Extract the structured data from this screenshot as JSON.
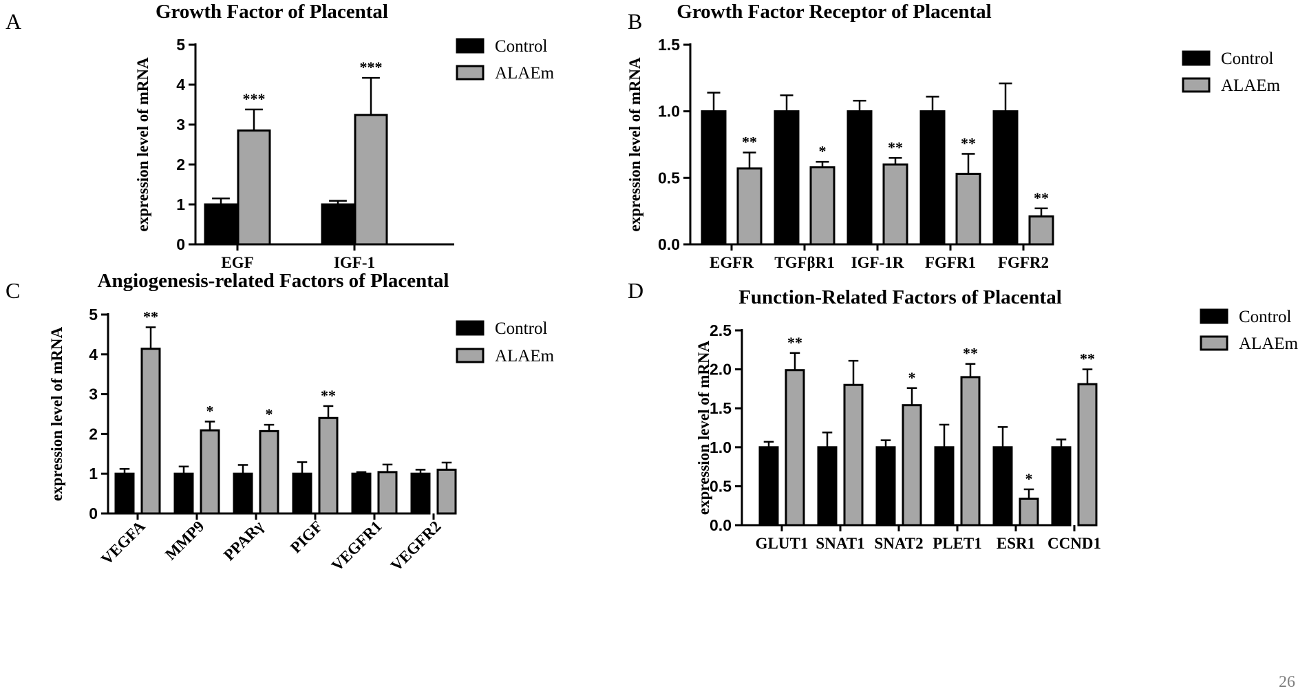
{
  "page_number": "26",
  "colors": {
    "control": "#000000",
    "alaem": "#a6a6a6",
    "page_number": "#808080"
  },
  "chart_data": [
    {
      "panel": "A",
      "type": "bar",
      "title": "Growth Factor of Placental",
      "xlabel": "",
      "ylabel": "expression level of mRNA",
      "ylim": [
        0,
        5
      ],
      "yticks": [
        "0",
        "1",
        "2",
        "3",
        "4",
        "5"
      ],
      "categories": [
        "EGF",
        "IGF-1"
      ],
      "series": [
        {
          "name": "Control",
          "values": [
            1.0,
            1.0
          ],
          "errors": [
            0.15,
            0.09
          ]
        },
        {
          "name": "ALAEm",
          "values": [
            2.85,
            3.24
          ],
          "errors": [
            0.53,
            0.93
          ]
        }
      ],
      "significance": [
        "***",
        "***"
      ],
      "legend": "top-right"
    },
    {
      "panel": "B",
      "type": "bar",
      "title": "Growth Factor Receptor of Placental",
      "xlabel": "",
      "ylabel": "expression level of mRNA",
      "ylim": [
        0,
        1.5
      ],
      "yticks": [
        "0.0",
        "0.5",
        "1.0",
        "1.5"
      ],
      "categories": [
        "EGFR",
        "TGFβR1",
        "IGF-1R",
        "FGFR1",
        "FGFR2"
      ],
      "series": [
        {
          "name": "Control",
          "values": [
            1.0,
            1.0,
            1.0,
            1.0,
            1.0
          ],
          "errors": [
            0.14,
            0.12,
            0.08,
            0.11,
            0.21
          ]
        },
        {
          "name": "ALAEm",
          "values": [
            0.57,
            0.58,
            0.6,
            0.53,
            0.21
          ],
          "errors": [
            0.12,
            0.04,
            0.05,
            0.15,
            0.06
          ]
        }
      ],
      "significance": [
        "**",
        "*",
        "**",
        "**",
        "**"
      ],
      "legend": "top-right"
    },
    {
      "panel": "C",
      "type": "bar",
      "title": "Angiogenesis-related Factors of Placental",
      "xlabel": "",
      "ylabel": "expression level of mRNA",
      "ylim": [
        0,
        5
      ],
      "yticks": [
        "0",
        "1",
        "2",
        "3",
        "4",
        "5"
      ],
      "categories": [
        "VEGFA",
        "MMP9",
        "PPARγ",
        "PIGF",
        "VEGFR1",
        "VEGFR2"
      ],
      "series": [
        {
          "name": "Control",
          "values": [
            1.0,
            1.0,
            1.0,
            1.0,
            1.0,
            1.0
          ],
          "errors": [
            0.12,
            0.18,
            0.22,
            0.29,
            0.04,
            0.1
          ]
        },
        {
          "name": "ALAEm",
          "values": [
            4.14,
            2.09,
            2.07,
            2.4,
            1.04,
            1.1
          ],
          "errors": [
            0.54,
            0.22,
            0.16,
            0.3,
            0.19,
            0.18
          ]
        }
      ],
      "significance": [
        "**",
        "*",
        "*",
        "**",
        "",
        ""
      ],
      "legend": "top-right"
    },
    {
      "panel": "D",
      "type": "bar",
      "title": "Function-Related Factors of Placental",
      "xlabel": "",
      "ylabel": "expression level of mRNA",
      "ylim": [
        0,
        2.5
      ],
      "yticks": [
        "0.0",
        "0.5",
        "1.0",
        "1.5",
        "2.0",
        "2.5"
      ],
      "categories": [
        "GLUT1",
        "SNAT1",
        "SNAT2",
        "PLET1",
        "ESR1",
        "CCND1"
      ],
      "series": [
        {
          "name": "Control",
          "values": [
            1.0,
            1.0,
            1.0,
            1.0,
            1.0,
            1.0
          ],
          "errors": [
            0.07,
            0.19,
            0.09,
            0.29,
            0.26,
            0.1
          ]
        },
        {
          "name": "ALAEm",
          "values": [
            1.99,
            1.8,
            1.54,
            1.9,
            0.34,
            1.81
          ],
          "errors": [
            0.22,
            0.31,
            0.22,
            0.17,
            0.12,
            0.19
          ]
        }
      ],
      "significance": [
        "**",
        "",
        "*",
        "**",
        "*",
        "**"
      ],
      "legend": "top-right"
    }
  ]
}
